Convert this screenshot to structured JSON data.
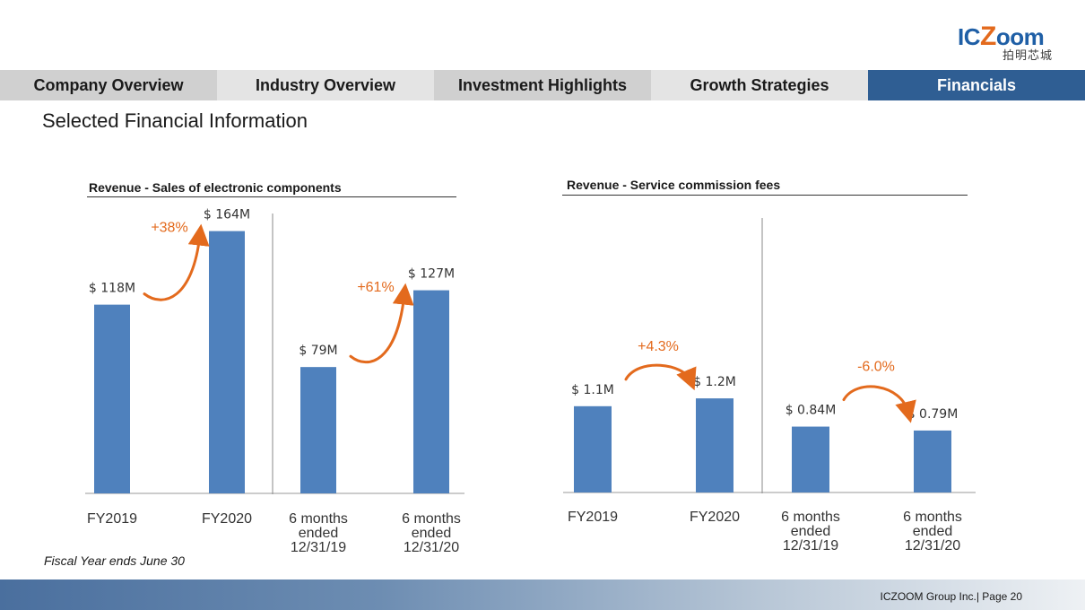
{
  "logo": {
    "ic": "IC",
    "z": "Z",
    "oom": "oom",
    "cn": "拍明芯城"
  },
  "tabs": [
    {
      "label": "Company Overview",
      "active": false
    },
    {
      "label": "Industry Overview",
      "active": false
    },
    {
      "label": "Investment Highlights",
      "active": false
    },
    {
      "label": "Growth Strategies",
      "active": false
    },
    {
      "label": "Financials",
      "active": true
    }
  ],
  "page_title": "Selected Financial Information",
  "footnote": "Fiscal Year ends June 30",
  "footer": "ICZOOM Group Inc.| Page 20",
  "colors": {
    "bar": "#4f81bd",
    "accent": "#e36a1d",
    "active_tab": "#2f5e93"
  },
  "chart_data": [
    {
      "type": "bar",
      "title": "Revenue - Sales of electronic components",
      "unit": "$M",
      "categories": [
        [
          "FY2019"
        ],
        [
          "FY2020"
        ],
        [
          "6 months",
          "ended",
          "12/31/19"
        ],
        [
          "6 months",
          "ended",
          "12/31/20"
        ]
      ],
      "values": [
        118,
        164,
        79,
        127
      ],
      "value_labels": [
        "$ 118M",
        "$ 164M",
        "$ 79M",
        "$ 127M"
      ],
      "ylim": [
        0,
        175
      ],
      "separator_after_index": 1,
      "growth": [
        {
          "from": 0,
          "to": 1,
          "label": "+38%"
        },
        {
          "from": 2,
          "to": 3,
          "label": "+61%"
        }
      ]
    },
    {
      "type": "bar",
      "title": "Revenue -  Service commission fees",
      "unit": "$M",
      "categories": [
        [
          "FY2019"
        ],
        [
          "FY2020"
        ],
        [
          "6 months",
          "ended",
          "12/31/19"
        ],
        [
          "6 months",
          "ended",
          "12/31/20"
        ]
      ],
      "values": [
        1.1,
        1.2,
        0.84,
        0.79
      ],
      "value_labels": [
        "$ 1.1M",
        "$ 1.2M",
        "$ 0.84M",
        "$ 0.79M"
      ],
      "ylim": [
        0,
        3.5
      ],
      "separator_after_index": 1,
      "growth": [
        {
          "from": 0,
          "to": 1,
          "label": "+4.3%"
        },
        {
          "from": 2,
          "to": 3,
          "label": "-6.0%"
        }
      ]
    }
  ]
}
